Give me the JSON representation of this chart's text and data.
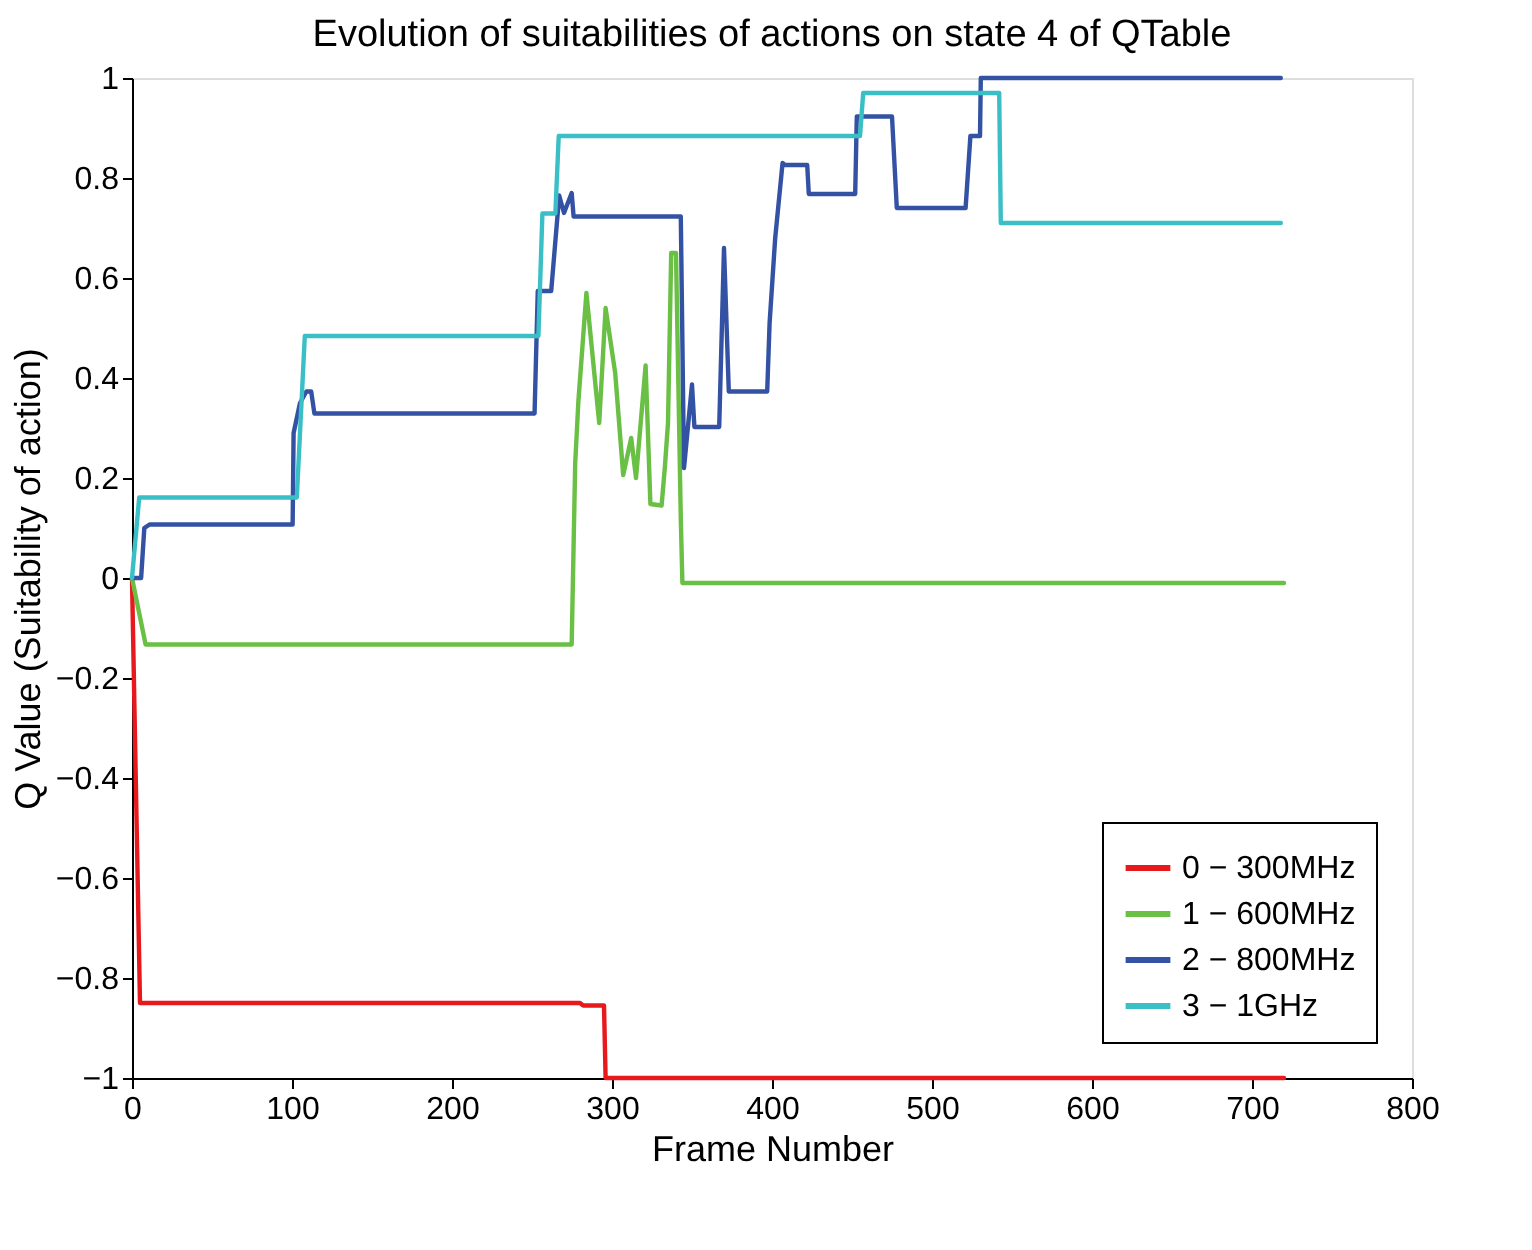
{
  "chart_data": {
    "type": "line",
    "title": "Evolution of suitabilities of actions on state 4 of QTable",
    "xlabel": "Frame Number",
    "ylabel": "Q Value (Suitability of action)",
    "series": [
      {
        "name": "0 − 300MHz",
        "color": "#e8191d",
        "x": [
          0,
          5,
          280,
          282,
          295,
          296,
          720
        ],
        "values": [
          0,
          -0.85,
          -0.85,
          -0.855,
          -0.855,
          -1,
          -1
        ]
      },
      {
        "name": "1 − 600MHz",
        "color": "#6abf45",
        "x": [
          0,
          8.5,
          274.8,
          277,
          279,
          284,
          292,
          296,
          302,
          307,
          312,
          315,
          321,
          324,
          331,
          333,
          335,
          337,
          340,
          343,
          344,
          720
        ],
        "values": [
          0,
          -0.133,
          -0.133,
          0.23,
          0.354,
          0.57,
          0.31,
          0.54,
          0.41,
          0.206,
          0.28,
          0.2,
          0.425,
          0.148,
          0.145,
          0.22,
          0.31,
          0.65,
          0.65,
          0.118,
          -0.01,
          -0.01
        ]
      },
      {
        "name": "2 − 800MHz",
        "color": "#3452a4",
        "x": [
          0,
          5.7,
          7.7,
          11,
          100.4,
          101,
          105,
          109,
          112,
          114,
          251.6,
          253.6,
          262,
          267,
          270,
          274.8,
          276,
          343,
          345,
          350,
          351.5,
          367,
          370,
          373,
          397,
          398.5,
          402,
          406.6,
          408,
          422,
          423,
          452,
          453,
          475,
          478,
          521,
          524,
          530,
          530.5,
          718
        ],
        "values": [
          0,
          0,
          0.1,
          0.107,
          0.107,
          0.29,
          0.35,
          0.373,
          0.373,
          0.329,
          0.329,
          0.574,
          0.574,
          0.765,
          0.73,
          0.77,
          0.723,
          0.723,
          0.22,
          0.387,
          0.302,
          0.302,
          0.66,
          0.373,
          0.373,
          0.51,
          0.68,
          0.83,
          0.826,
          0.826,
          0.768,
          0.768,
          0.923,
          0.923,
          0.74,
          0.74,
          0.884,
          0.884,
          1,
          1
        ]
      },
      {
        "name": "3 − 1GHz",
        "color": "#3bbfc6",
        "x": [
          0,
          4.5,
          103,
          108,
          254,
          256.5,
          264.6,
          266.7,
          455,
          457,
          542,
          543,
          718
        ],
        "values": [
          0,
          0.161,
          0.161,
          0.484,
          0.484,
          0.729,
          0.729,
          0.884,
          0.884,
          0.97,
          0.97,
          0.71,
          0.71
        ]
      }
    ],
    "xlim": [
      0,
      800
    ],
    "xticks": [
      0,
      100,
      200,
      300,
      400,
      500,
      600,
      700,
      800
    ],
    "ylim": [
      -1,
      1
    ],
    "yticks": [
      {
        "value": -1,
        "label": "−1"
      },
      {
        "value": -0.8,
        "label": "−0.8"
      },
      {
        "value": -0.6,
        "label": "−0.6"
      },
      {
        "value": -0.4,
        "label": "−0.4"
      },
      {
        "value": -0.2,
        "label": "−0.2"
      },
      0,
      0.2,
      0.4,
      0.6,
      0.8,
      1
    ],
    "legend": "bottom right",
    "grid": false,
    "line_style": "solid",
    "marker": "none"
  }
}
